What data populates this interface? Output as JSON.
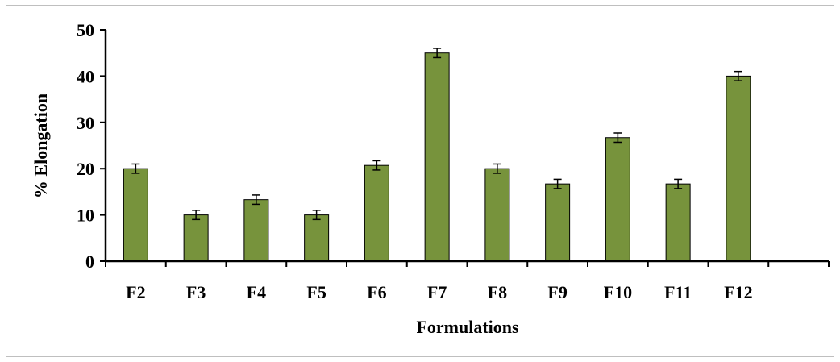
{
  "chart_data": {
    "type": "bar",
    "categories": [
      "F2",
      "F3",
      "F4",
      "F5",
      "F6",
      "F7",
      "F8",
      "F9",
      "F10",
      "F11",
      "F12"
    ],
    "values": [
      20,
      10,
      13.3,
      10,
      20.7,
      45,
      20,
      16.7,
      26.7,
      16.7,
      40
    ],
    "error": [
      1,
      1,
      1,
      1,
      1,
      1,
      1,
      1,
      1,
      1,
      1
    ],
    "xlabel": "Formulations",
    "ylabel": "% Elongation",
    "ylim": [
      0,
      50
    ],
    "yticks": [
      0,
      10,
      20,
      30,
      40,
      50
    ],
    "slots": 12,
    "grid": false,
    "legend": "none",
    "bar_color": "#77933c"
  }
}
